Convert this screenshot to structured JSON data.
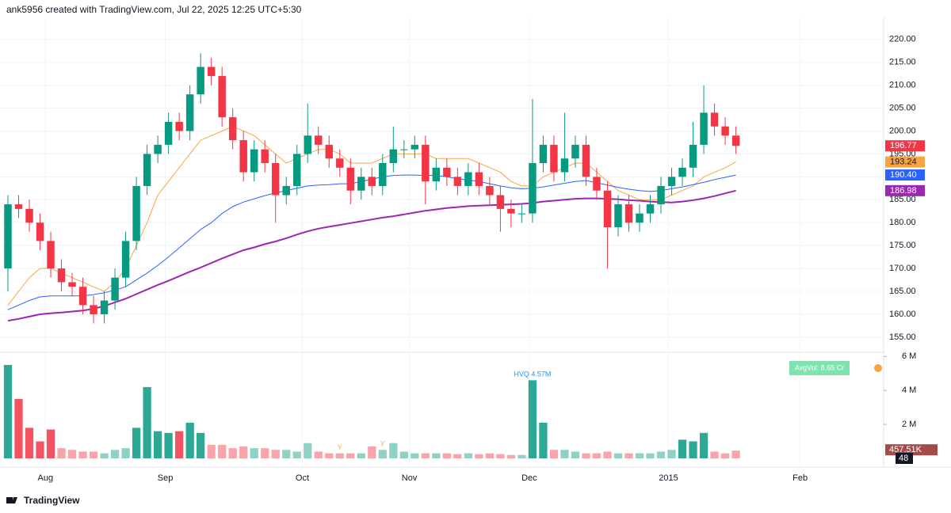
{
  "header": {
    "text": "ank5956 created with TradingView.com, Jul 22, 2025 12:25 UTC+5:30"
  },
  "footer": {
    "brand": "TradingView"
  },
  "chart_data": {
    "type": "candlestick",
    "up_color": "#089981",
    "down_color": "#f23645",
    "grid": true,
    "xlim": [
      -0.74,
      81.8
    ],
    "xticks": [
      {
        "value": 3.5,
        "label": "Aug"
      },
      {
        "value": 14.7,
        "label": "Sep"
      },
      {
        "value": 27.5,
        "label": "Oct"
      },
      {
        "value": 37.5,
        "label": "Nov"
      },
      {
        "value": 48.7,
        "label": "Dec"
      },
      {
        "value": 61.7,
        "label": "2015"
      },
      {
        "value": 74,
        "label": "Feb"
      }
    ],
    "ylim": [
      151.7,
      224.8
    ],
    "yticks": [
      {
        "value": 155,
        "label": "155.00"
      },
      {
        "value": 160,
        "label": "160.00"
      },
      {
        "value": 165,
        "label": "165.00"
      },
      {
        "value": 170,
        "label": "170.00"
      },
      {
        "value": 175,
        "label": "175.00"
      },
      {
        "value": 180,
        "label": "180.00"
      },
      {
        "value": 185,
        "label": "185.00"
      },
      {
        "value": 190,
        "label": "190.00"
      },
      {
        "value": 195,
        "label": "195.00"
      },
      {
        "value": 200,
        "label": "200.00"
      },
      {
        "value": 205,
        "label": "205.00"
      },
      {
        "value": 210,
        "label": "210.00"
      },
      {
        "value": 215,
        "label": "215.00"
      },
      {
        "value": 220,
        "label": "220.00"
      }
    ],
    "open": [
      170,
      184,
      183,
      180,
      176,
      170,
      167,
      166,
      162,
      160,
      163,
      168,
      176,
      188,
      195,
      197,
      202,
      200,
      208,
      214,
      212,
      203,
      198,
      191,
      196,
      193,
      186,
      188,
      195,
      199,
      197,
      194,
      192,
      187,
      190,
      188,
      193,
      196,
      196,
      197,
      189,
      192,
      190,
      188,
      191,
      188,
      186,
      183,
      182,
      182,
      193,
      197,
      191,
      194,
      197,
      190,
      187,
      179,
      184,
      180,
      182,
      184,
      188,
      190,
      192,
      197,
      204,
      201,
      199
    ],
    "high": [
      186,
      186,
      185,
      182,
      178,
      172,
      169,
      168,
      164,
      165,
      170,
      178,
      190,
      197,
      199,
      204,
      204,
      210,
      217,
      216,
      214,
      205,
      200,
      198,
      198,
      195,
      190,
      197,
      206,
      201,
      199,
      196,
      194,
      192,
      192,
      195,
      201,
      198,
      199,
      199,
      194,
      194,
      192,
      193,
      193,
      190,
      188,
      185,
      184,
      207,
      199,
      199,
      204,
      199,
      199,
      192,
      189,
      186,
      186,
      184,
      186,
      190,
      192,
      194,
      202,
      210,
      206,
      203,
      201
    ],
    "low": [
      165,
      181,
      178,
      174,
      168,
      165,
      164,
      160,
      158,
      158,
      161,
      166,
      174,
      186,
      193,
      195,
      198,
      198,
      206,
      210,
      201,
      196,
      189,
      189,
      191,
      180,
      184,
      186,
      193,
      195,
      192,
      190,
      184,
      185,
      186,
      186,
      191,
      194,
      194,
      184,
      187,
      188,
      186,
      186,
      186,
      184,
      178,
      179,
      180,
      180,
      191,
      189,
      189,
      192,
      188,
      185,
      170,
      177,
      178,
      178,
      180,
      182,
      186,
      188,
      190,
      195,
      199,
      197,
      195
    ],
    "close": [
      184,
      183,
      180,
      176,
      170,
      167,
      166,
      162,
      160,
      163,
      168,
      176,
      188,
      195,
      197,
      202,
      200,
      208,
      214,
      212,
      203,
      198,
      191,
      196,
      193,
      186,
      188,
      195,
      199,
      197,
      194,
      192,
      187,
      190,
      188,
      193,
      196,
      196,
      197,
      189,
      192,
      190,
      188,
      191,
      188,
      186,
      183,
      182,
      182,
      193,
      197,
      191,
      194,
      197,
      190,
      187,
      179,
      184,
      180,
      182,
      184,
      188,
      190,
      192,
      197,
      204,
      201,
      199,
      196.77
    ],
    "close_label": "196.77",
    "moving_averages": [
      {
        "color": "#f7a541",
        "width": 1,
        "last_label": "193.24",
        "values": [
          162,
          165,
          168,
          170,
          170,
          169,
          168,
          167,
          166,
          165,
          167,
          170,
          175,
          180,
          186,
          189,
          192,
          195,
          198,
          199,
          200,
          201,
          200,
          199,
          197,
          195,
          193,
          194,
          195,
          196,
          196,
          195,
          193,
          193,
          193,
          194,
          195,
          195,
          195,
          195,
          194,
          194,
          194,
          194,
          193,
          192,
          191,
          189,
          188,
          188,
          190,
          191,
          192,
          193,
          193,
          191,
          189,
          187,
          186,
          185,
          185,
          185,
          186,
          187,
          188,
          190,
          191,
          192,
          193.24
        ]
      },
      {
        "color": "#2962ff",
        "width": 1,
        "last_label": "190.40",
        "values": [
          161,
          162,
          163,
          163.8,
          164,
          164,
          164,
          164,
          164.3,
          164.7,
          165.3,
          166,
          167.5,
          169,
          170.7,
          172.5,
          174.5,
          176.5,
          178.5,
          180,
          182,
          183.5,
          184.5,
          185.2,
          185.9,
          186.5,
          187,
          187.5,
          188,
          188.2,
          188.3,
          188.5,
          188.5,
          189,
          189.5,
          190,
          190.3,
          190.4,
          190.4,
          190.3,
          190.3,
          190,
          189.6,
          189.3,
          189,
          188.5,
          188,
          187.6,
          187.4,
          187.5,
          187.8,
          188.2,
          188.6,
          189,
          189.2,
          188.7,
          188.2,
          187.7,
          187.3,
          187,
          186.8,
          187,
          187.4,
          187.8,
          188.3,
          188.8,
          189.4,
          189.9,
          190.4
        ]
      },
      {
        "color": "#9c27b0",
        "width": 2,
        "last_label": "186.98",
        "values": [
          158.6,
          159,
          159.5,
          160,
          160.2,
          160.4,
          160.6,
          160.8,
          161.2,
          161.8,
          162.6,
          163.4,
          164.4,
          165.4,
          166.4,
          167.3,
          168.3,
          169.3,
          170.2,
          171.2,
          172.2,
          173.1,
          174,
          174.6,
          175.3,
          175.9,
          176.6,
          177.4,
          178.1,
          178.7,
          179.1,
          179.5,
          179.9,
          180.3,
          180.7,
          181.1,
          181.4,
          181.8,
          182.2,
          182.6,
          182.9,
          183.2,
          183.4,
          183.6,
          183.7,
          183.8,
          183.9,
          184,
          184.1,
          184.3,
          184.6,
          184.8,
          185,
          185.2,
          185.3,
          185.3,
          185.2,
          185.1,
          184.9,
          184.8,
          184.6,
          184.5,
          184.4,
          184.6,
          184.9,
          185.3,
          185.8,
          186.4,
          186.98
        ]
      }
    ],
    "volume": {
      "ylim": [
        0,
        6.2
      ],
      "yticks": [
        {
          "value": 2,
          "label": "2 M"
        },
        {
          "value": 4,
          "label": "4 M"
        },
        {
          "value": 6,
          "label": "6 M"
        }
      ],
      "values": [
        5.5,
        3.5,
        1.8,
        1.0,
        1.7,
        0.6,
        0.5,
        0.4,
        0.4,
        0.3,
        0.5,
        0.6,
        1.8,
        4.2,
        1.6,
        1.5,
        1.6,
        2.1,
        1.5,
        0.8,
        0.8,
        0.6,
        0.7,
        0.6,
        0.6,
        0.5,
        0.5,
        0.4,
        0.9,
        0.4,
        0.3,
        0.3,
        0.3,
        0.3,
        0.7,
        0.5,
        0.9,
        0.4,
        0.3,
        0.3,
        0.3,
        0.3,
        0.25,
        0.3,
        0.25,
        0.3,
        0.25,
        0.2,
        0.2,
        4.6,
        2.1,
        0.5,
        0.5,
        0.4,
        0.3,
        0.3,
        0.4,
        0.3,
        0.3,
        0.3,
        0.3,
        0.4,
        0.5,
        1.1,
        1.0,
        1.5,
        0.4,
        0.3,
        0.45751
      ],
      "last_label": "457.51K",
      "counter": "48",
      "hvq": {
        "index": 49,
        "text": "HVQ 4.57M"
      },
      "markers": [
        {
          "index": 31,
          "text": "Y"
        },
        {
          "index": 35,
          "text": "Y"
        }
      ],
      "avg_vol": "AvgVol: 8.65 Cr"
    }
  }
}
